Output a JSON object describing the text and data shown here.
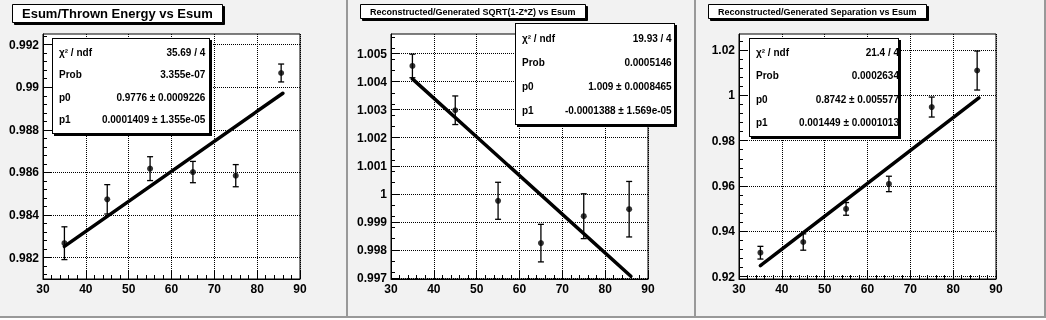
{
  "chart_data": [
    {
      "type": "scatter",
      "title": "Esum/Thrown Energy vs Esum",
      "annotations": [
        "χ² / ndf",
        "35.69 / 4",
        "Prob",
        "3.355e-07",
        "p0",
        "0.9776 ± 0.0009226",
        "p1",
        "0.0001409 ± 1.355e-05"
      ],
      "xlim": [
        30,
        90
      ],
      "xticks": [
        30,
        40,
        50,
        60,
        70,
        80,
        90
      ],
      "ylim": [
        0.981,
        0.9925
      ],
      "yticks": [
        0.982,
        0.984,
        0.986,
        0.988,
        0.99,
        0.992
      ],
      "grid": true,
      "series": [
        {
          "type": "scatter",
          "marker": "circle",
          "color": "#000000",
          "x": [
            35,
            45,
            55,
            65,
            75,
            85.6
          ],
          "values": [
            0.98268,
            0.98474,
            0.98618,
            0.98602,
            0.98585,
            0.99067
          ],
          "errors": [
            0.00077,
            0.00069,
            0.00056,
            0.0005,
            0.00052,
            0.00042
          ]
        },
        {
          "type": "line",
          "color": "#000000",
          "x": [
            35,
            86
          ],
          "values": [
            0.98253,
            0.98972
          ]
        }
      ]
    },
    {
      "type": "scatter",
      "title": "Reconstructed/Generated SQRT(1-Z*Z) vs Esum",
      "annotations": [
        "χ² / ndf",
        "19.93 / 4",
        "Prob",
        "0.0005146",
        "p0",
        "1.009 ± 0.0008465",
        "p1",
        "-0.0001388 ± 1.569e-05"
      ],
      "xlim": [
        30,
        90
      ],
      "xticks": [
        30,
        40,
        50,
        60,
        70,
        80,
        90
      ],
      "ylim": [
        0.99696,
        1.0057
      ],
      "yticks": [
        0.997,
        0.998,
        0.999,
        1,
        1.001,
        1.002,
        1.003,
        1.004,
        1.005
      ],
      "grid": true,
      "series": [
        {
          "type": "scatter",
          "marker": "circle",
          "color": "#000000",
          "x": [
            35,
            45,
            55,
            65,
            75,
            85.6
          ],
          "values": [
            1.00456,
            1.00298,
            0.99975,
            0.99824,
            0.9992,
            0.99945
          ],
          "errors": [
            0.00042,
            0.00051,
            0.00066,
            0.00067,
            0.0008,
            0.00099
          ]
        },
        {
          "type": "line",
          "color": "#000000",
          "x": [
            35,
            86
          ],
          "values": [
            1.0041,
            0.99706
          ]
        }
      ]
    },
    {
      "type": "scatter",
      "title": "Reconstructed/Generated Separation vs Esum",
      "annotations": [
        "χ² / ndf",
        "21.4 / 4",
        "Prob",
        "0.0002634",
        "p0",
        "0.8742 ± 0.005577",
        "p1",
        "0.001449 ± 0.0001013"
      ],
      "xlim": [
        30,
        90
      ],
      "xticks": [
        30,
        40,
        50,
        60,
        70,
        80,
        90
      ],
      "ylim": [
        0.919,
        1.027
      ],
      "yticks": [
        0.92,
        0.94,
        0.96,
        0.98,
        1,
        1.02
      ],
      "grid": true,
      "series": [
        {
          "type": "scatter",
          "marker": "circle",
          "color": "#000000",
          "x": [
            35,
            45,
            55,
            65,
            75,
            85.6
          ],
          "values": [
            0.9306,
            0.9353,
            0.9499,
            0.9609,
            0.9948,
            1.0109
          ],
          "errors": [
            0.0028,
            0.0036,
            0.0028,
            0.0034,
            0.0044,
            0.0086
          ]
        },
        {
          "type": "line",
          "color": "#000000",
          "x": [
            35,
            86
          ],
          "values": [
            0.9249,
            0.9988
          ]
        }
      ]
    }
  ]
}
